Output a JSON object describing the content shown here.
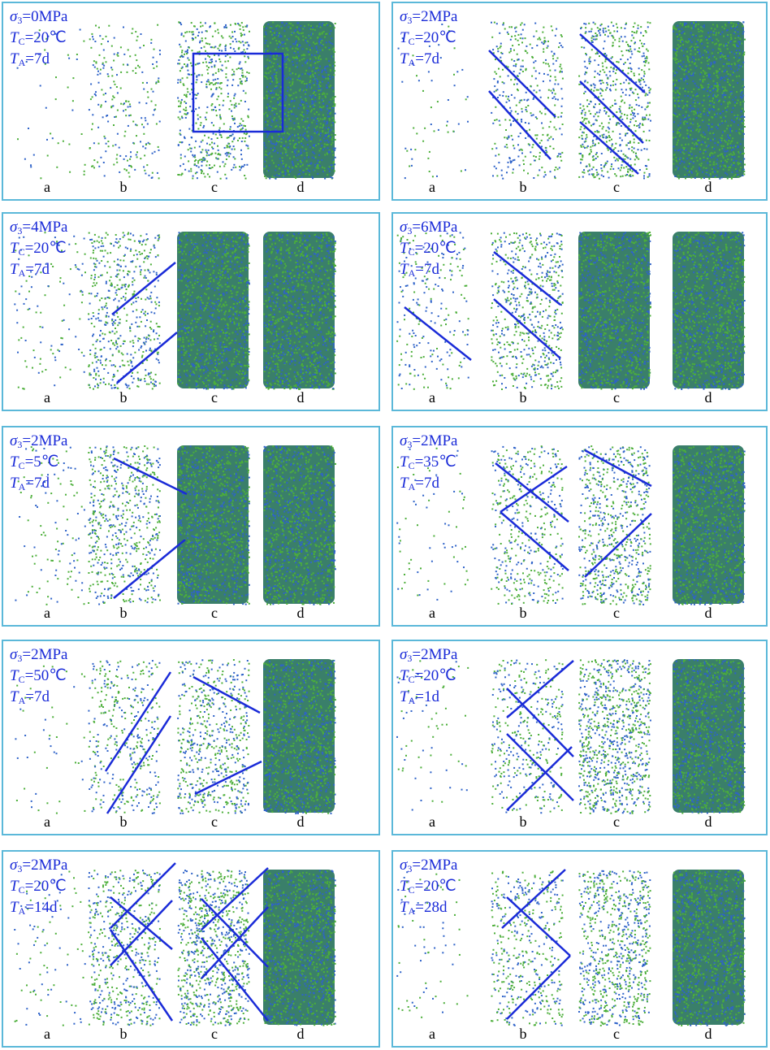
{
  "colors": {
    "panel_border": "#5bb8d9",
    "annotation_blue": "#1a2bd8",
    "particle_green": "#4caf3a",
    "particle_blue": "#2f63c9"
  },
  "panels": [
    {
      "sigma3": "=0MPa",
      "tc": "=20",
      "ta": "=7d",
      "labels": [
        "a",
        "b",
        "c",
        "d"
      ],
      "density": [
        0.04,
        0.22,
        0.55,
        1.0
      ],
      "annotation": "rect"
    },
    {
      "sigma3": "=2MPa",
      "tc": "=20",
      "ta": "=7d",
      "labels": [
        "a",
        "b",
        "c",
        "d"
      ],
      "density": [
        0.05,
        0.35,
        0.6,
        1.0
      ],
      "annotation": "parallel-down"
    },
    {
      "sigma3": "=4MPa",
      "tc": "=20",
      "ta": "=7d",
      "labels": [
        "a",
        "b",
        "c",
        "d"
      ],
      "density": [
        0.1,
        0.5,
        1.0,
        1.0
      ],
      "annotation": "parallel-up"
    },
    {
      "sigma3": "=6MPa",
      "tc": "=20",
      "ta": "=7d",
      "labels": [
        "a",
        "b",
        "c",
        "d"
      ],
      "density": [
        0.2,
        0.55,
        1.0,
        1.0
      ],
      "annotation": "parallel-down-2"
    },
    {
      "sigma3": "=2MPa",
      "tc": "=5",
      "ta": "=7d",
      "labels": [
        "a",
        "b",
        "c",
        "d"
      ],
      "density": [
        0.1,
        0.55,
        1.0,
        1.0
      ],
      "annotation": "mixed"
    },
    {
      "sigma3": "=2MPa",
      "tc": "=35",
      "ta": "=7d",
      "labels": [
        "a",
        "b",
        "c",
        "d"
      ],
      "density": [
        0.06,
        0.4,
        0.65,
        1.0
      ],
      "annotation": "x-shape"
    },
    {
      "sigma3": "=2MPa",
      "tc": "=50",
      "ta": "=7d",
      "labels": [
        "a",
        "b",
        "c",
        "d"
      ],
      "density": [
        0.04,
        0.35,
        0.55,
        1.0
      ],
      "annotation": "steep"
    },
    {
      "sigma3": "=2MPa",
      "tc": "=20",
      "ta": "=1d",
      "labels": [
        "a",
        "b",
        "c",
        "d"
      ],
      "density": [
        0.06,
        0.35,
        0.8,
        1.0
      ],
      "annotation": "double-x"
    },
    {
      "sigma3": "=2MPa",
      "tc": "=20",
      "ta": "=14d",
      "labels": [
        "a",
        "b",
        "c",
        "d"
      ],
      "density": [
        0.08,
        0.5,
        0.75,
        1.0
      ],
      "annotation": "double-x-2"
    },
    {
      "sigma3": "=2MPa",
      "tc": "=20",
      "ta": "=28d",
      "labels": [
        "a",
        "b",
        "c",
        "d"
      ],
      "density": [
        0.06,
        0.4,
        0.7,
        1.0
      ],
      "annotation": "chevron"
    }
  ],
  "units": {
    "celsius": "℃"
  },
  "symbols": {
    "sigma": "σ",
    "sigma_sub": "3",
    "t": "T",
    "c_sub": "C",
    "a_sub": "A"
  }
}
